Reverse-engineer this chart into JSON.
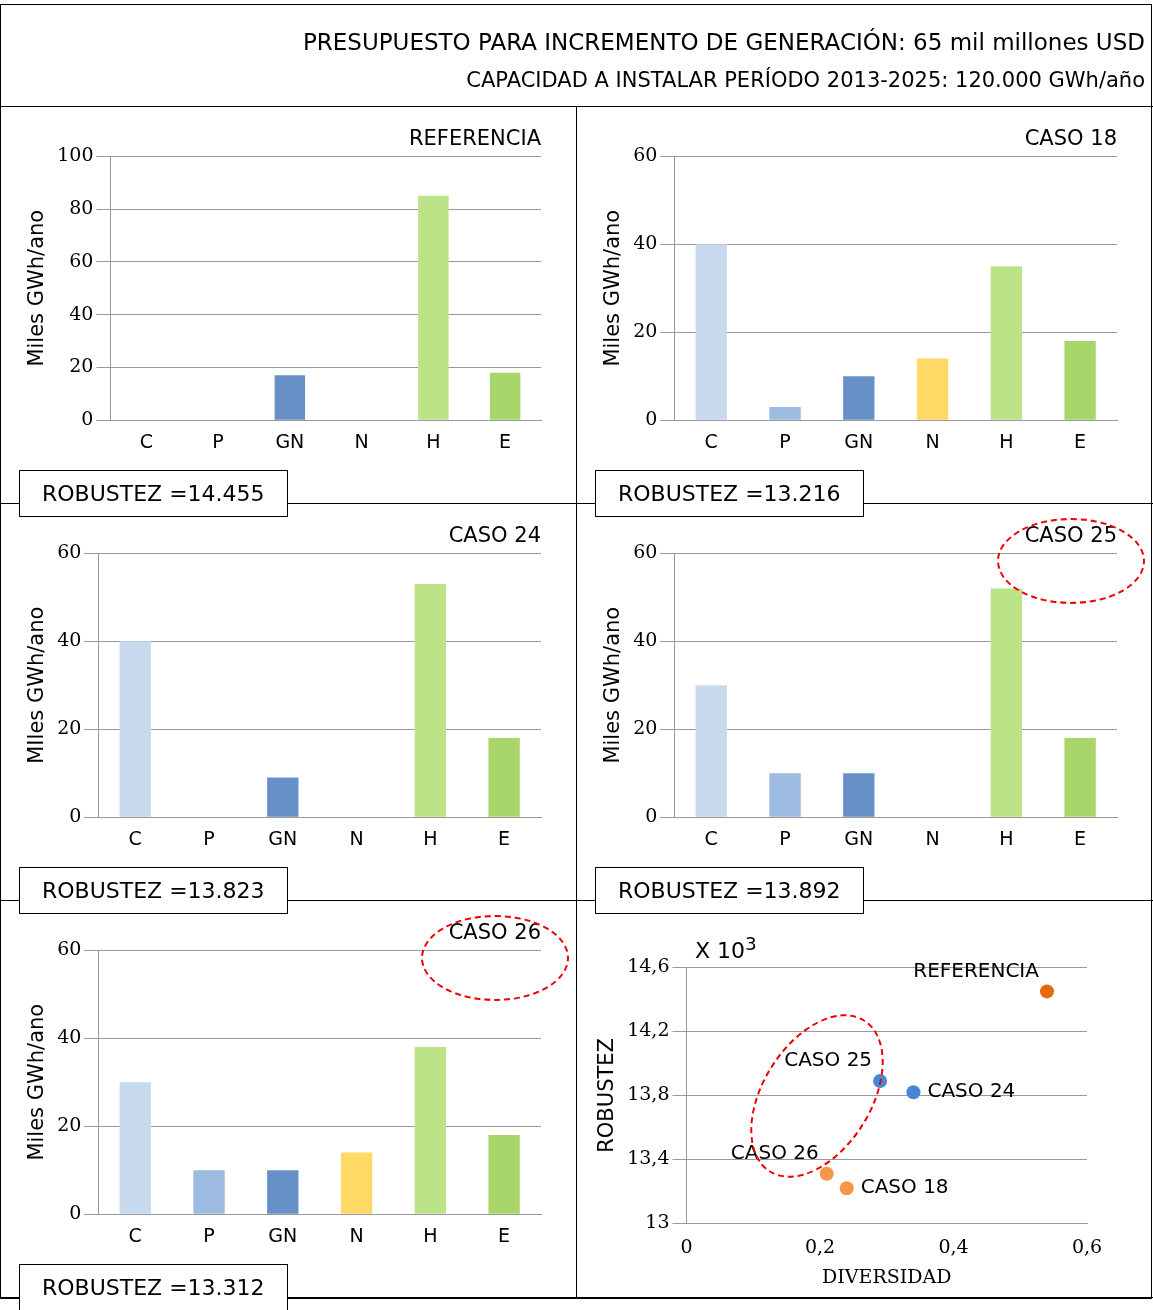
{
  "chart_data": [
    {
      "type": "other",
      "title": "PRESUPUESTO PARA INCREMENTO DE GENERACIÓN: 65 mil millones USD",
      "subtitle": "CAPACIDAD A INSTALAR PERÍODO 2013-2025: 120.000 GWh/año"
    },
    {
      "type": "bar",
      "title": "REFERENCIA",
      "ylabel": "Miles GWh/ano",
      "categories": [
        "C",
        "P",
        "GN",
        "N",
        "H",
        "E"
      ],
      "values": [
        0,
        0,
        17,
        0,
        85,
        18
      ],
      "colors": [
        "#c9d9ed",
        "#9dbbe0",
        "#6690c6",
        "#ffd966",
        "#bde389",
        "#a8d66a"
      ],
      "ylim": [
        0,
        100
      ],
      "yticks": [
        0,
        20,
        40,
        60,
        80,
        100
      ],
      "grid": "y",
      "annotations": [
        "ROBUSTEZ =14.455"
      ]
    },
    {
      "type": "bar",
      "title": "CASO 18",
      "ylabel": "Miles GWh/ano",
      "categories": [
        "C",
        "P",
        "GN",
        "N",
        "H",
        "E"
      ],
      "values": [
        40,
        3,
        10,
        14,
        35,
        18
      ],
      "colors": [
        "#c9d9ed",
        "#9dbbe0",
        "#6690c6",
        "#ffd966",
        "#bde389",
        "#a8d66a"
      ],
      "ylim": [
        0,
        60
      ],
      "yticks": [
        0,
        20,
        40,
        60
      ],
      "grid": "y",
      "annotations": [
        "ROBUSTEZ =13.216"
      ]
    },
    {
      "type": "bar",
      "title": "CASO 24",
      "ylabel": "MIles GWh/ano",
      "categories": [
        "C",
        "P",
        "GN",
        "N",
        "H",
        "E"
      ],
      "values": [
        40,
        0,
        9,
        0,
        53,
        18
      ],
      "colors": [
        "#c9d9ed",
        "#9dbbe0",
        "#6690c6",
        "#ffd966",
        "#bde389",
        "#a8d66a"
      ],
      "ylim": [
        0,
        60
      ],
      "yticks": [
        0,
        20,
        40,
        60
      ],
      "grid": "y",
      "annotations": [
        "ROBUSTEZ =13.823"
      ]
    },
    {
      "type": "bar",
      "title": "CASO 25",
      "ylabel": "Miles GWh/ano",
      "categories": [
        "C",
        "P",
        "GN",
        "N",
        "H",
        "E"
      ],
      "values": [
        30,
        10,
        10,
        0,
        52,
        18
      ],
      "colors": [
        "#c9d9ed",
        "#9dbbe0",
        "#6690c6",
        "#ffd966",
        "#bde389",
        "#a8d66a"
      ],
      "ylim": [
        0,
        60
      ],
      "yticks": [
        0,
        20,
        40,
        60
      ],
      "grid": "y",
      "annotations": [
        "ROBUSTEZ =13.892"
      ]
    },
    {
      "type": "bar",
      "title": "CASO 26",
      "ylabel": "Miles GWh/ano",
      "categories": [
        "C",
        "P",
        "GN",
        "N",
        "H",
        "E"
      ],
      "values": [
        30,
        10,
        10,
        14,
        38,
        18
      ],
      "colors": [
        "#c9d9ed",
        "#9dbbe0",
        "#6690c6",
        "#ffd966",
        "#bde389",
        "#a8d66a"
      ],
      "ylim": [
        0,
        60
      ],
      "yticks": [
        0,
        20,
        40,
        60
      ],
      "grid": "y",
      "annotations": [
        "ROBUSTEZ =13.312"
      ]
    },
    {
      "type": "scatter",
      "xlabel": "DIVERSIDAD",
      "ylabel": "ROBUSTEZ",
      "x": [
        0.54,
        0.29,
        0.34,
        0.21,
        0.24
      ],
      "values": [
        14.45,
        13.89,
        13.82,
        13.31,
        13.22
      ],
      "colors": [
        "#e36c09",
        "#4a86d6",
        "#4a86d6",
        "#f79646",
        "#f79646"
      ],
      "marker": "circle",
      "xlim": [
        0,
        0.6
      ],
      "xticks": [
        0,
        {
          "value": 0.2,
          "label": "0,2"
        },
        {
          "value": 0.4,
          "label": "0,4"
        },
        {
          "value": 0.6,
          "label": "0,6"
        }
      ],
      "ylim": [
        13,
        14.6
      ],
      "yticks": [
        13,
        {
          "value": 13.4,
          "label": "13,4"
        },
        {
          "value": 13.8,
          "label": "13,8"
        },
        {
          "value": 14.2,
          "label": "14,2"
        },
        {
          "value": 14.6,
          "label": "14,6"
        }
      ],
      "grid": "y",
      "annotations": [
        "X 10$^{3}$",
        {
          "text": "REFERENCIA",
          "x": 0.54,
          "y": 14.45
        },
        {
          "text": "CASO 25",
          "x": 0.29,
          "y": 13.89
        },
        {
          "text": "CASO 24",
          "x": 0.34,
          "y": 13.82
        },
        {
          "text": "CASO 26",
          "x": 0.21,
          "y": 13.31
        },
        {
          "text": "CASO 18",
          "x": 0.24,
          "y": 13.22
        }
      ]
    }
  ]
}
